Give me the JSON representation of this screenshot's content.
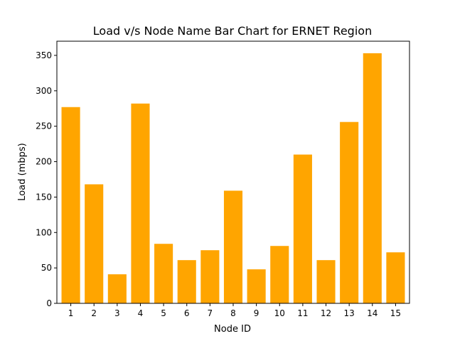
{
  "chart_data": {
    "type": "bar",
    "title": "Load v/s Node Name Bar Chart for ERNET Region",
    "xlabel": "Node ID",
    "ylabel": "Load (mbps)",
    "categories": [
      "1",
      "2",
      "3",
      "4",
      "5",
      "6",
      "7",
      "8",
      "9",
      "10",
      "11",
      "12",
      "13",
      "14",
      "15"
    ],
    "values": [
      277,
      168,
      41,
      282,
      84,
      61,
      75,
      159,
      48,
      81,
      210,
      61,
      256,
      353,
      72
    ],
    "ylim": [
      0,
      370
    ],
    "yticks": [
      0,
      50,
      100,
      150,
      200,
      250,
      300,
      350
    ],
    "grid": false,
    "bar_color": "#ffa500"
  }
}
